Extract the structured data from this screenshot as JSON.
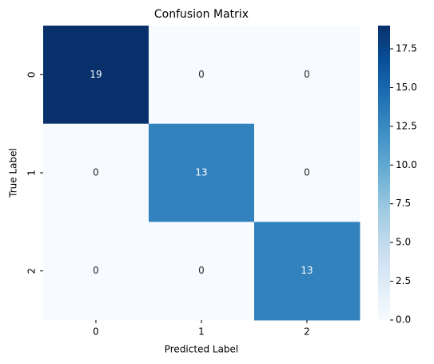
{
  "chart_data": {
    "type": "heatmap",
    "title": "Confusion Matrix",
    "x_label": "Predicted Label",
    "y_label": "True Label",
    "x_categories": [
      "0",
      "1",
      "2"
    ],
    "y_categories": [
      "0",
      "1",
      "2"
    ],
    "values": [
      [
        19,
        0,
        0
      ],
      [
        0,
        13,
        0
      ],
      [
        0,
        0,
        13
      ]
    ],
    "colormap": "Blues",
    "clim": [
      0,
      19
    ],
    "colorbar_ticks": [
      {
        "value": 0,
        "label": "0.0"
      },
      {
        "value": 2.5,
        "label": "2.5"
      },
      {
        "value": 5,
        "label": "5.0"
      },
      {
        "value": 7.5,
        "label": "7.5"
      },
      {
        "value": 10,
        "label": "10.0"
      },
      {
        "value": 12.5,
        "label": "12.5"
      },
      {
        "value": 15,
        "label": "15.0"
      },
      {
        "value": 17.5,
        "label": "17.5"
      }
    ]
  }
}
